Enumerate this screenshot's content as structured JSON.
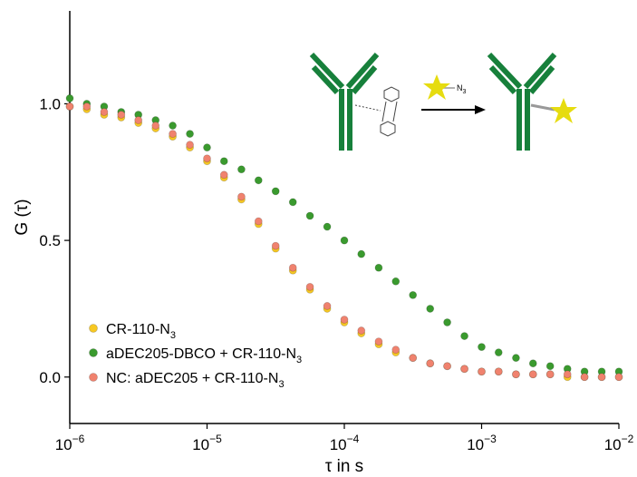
{
  "chart_data": {
    "type": "scatter",
    "xlabel": "τ in s",
    "ylabel": "G (τ)",
    "annotation": "N3",
    "xscale": "log",
    "xlim": [
      1e-06,
      0.01
    ],
    "xticks": [
      {
        "value": 1e-06,
        "label": "10−6"
      },
      {
        "value": 1e-05,
        "label": "10−5"
      },
      {
        "value": 0.0001,
        "label": "10−4"
      },
      {
        "value": 0.001,
        "label": "10−3"
      },
      {
        "value": 0.01,
        "label": "10−2"
      }
    ],
    "ylim": [
      -0.17,
      1.34
    ],
    "yticks": [
      {
        "value": 0,
        "label": "0.0"
      },
      0.5,
      {
        "value": 1,
        "label": "1.0"
      }
    ],
    "legend": "lower left",
    "x": [
      1e-06,
      1.33e-06,
      1.78e-06,
      2.37e-06,
      3.16e-06,
      4.22e-06,
      5.62e-06,
      7.5e-06,
      1e-05,
      1.33e-05,
      1.78e-05,
      2.37e-05,
      3.16e-05,
      4.22e-05,
      5.62e-05,
      7.5e-05,
      0.0001,
      0.000133,
      0.000178,
      0.000237,
      0.000316,
      0.000422,
      0.000562,
      0.00075,
      0.001,
      0.00133,
      0.00178,
      0.00237,
      0.00316,
      0.00422,
      0.00562,
      0.0075,
      0.01
    ],
    "series": [
      {
        "name": "CR-110-N3",
        "color": "#f7c823",
        "values": [
          0.99,
          0.98,
          0.96,
          0.95,
          0.93,
          0.91,
          0.88,
          0.84,
          0.79,
          0.73,
          0.65,
          0.56,
          0.47,
          0.39,
          0.32,
          0.25,
          0.2,
          0.16,
          0.12,
          0.09,
          0.07,
          0.05,
          0.04,
          0.03,
          0.02,
          0.02,
          0.01,
          0.01,
          0.01,
          0,
          0,
          0,
          0
        ]
      },
      {
        "name": "aDEC205-DBCO + CR-110-N3",
        "color": "#3a9a2e",
        "values": [
          1.02,
          1.0,
          0.99,
          0.97,
          0.96,
          0.94,
          0.92,
          0.89,
          0.84,
          0.79,
          0.76,
          0.72,
          0.68,
          0.64,
          0.59,
          0.55,
          0.5,
          0.45,
          0.4,
          0.35,
          0.3,
          0.25,
          0.2,
          0.15,
          0.11,
          0.09,
          0.07,
          0.05,
          0.04,
          0.03,
          0.02,
          0.02,
          0.02
        ]
      },
      {
        "name": "NC: aDEC205 + CR-110-N3",
        "color": "#f0826e",
        "values": [
          0.99,
          0.99,
          0.97,
          0.96,
          0.94,
          0.92,
          0.89,
          0.85,
          0.8,
          0.74,
          0.66,
          0.57,
          0.48,
          0.4,
          0.33,
          0.26,
          0.21,
          0.17,
          0.13,
          0.1,
          0.07,
          0.05,
          0.04,
          0.03,
          0.02,
          0.02,
          0.01,
          0.01,
          0.01,
          0.01,
          0,
          0,
          0
        ]
      }
    ]
  }
}
